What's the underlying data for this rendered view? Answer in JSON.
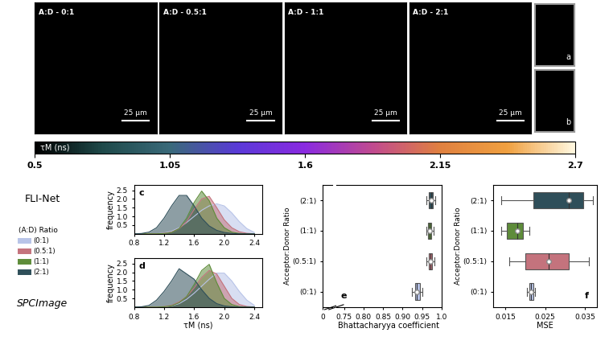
{
  "images": [
    {
      "label": "A:D - 0:1",
      "scale_bar": "25 μm"
    },
    {
      "label": "A:D - 0.5:1",
      "scale_bar": "25 μm"
    },
    {
      "label": "A:D - 1:1",
      "scale_bar": "25 μm"
    },
    {
      "label": "A:D - 2:1",
      "scale_bar": "25 μm"
    }
  ],
  "insets": [
    "a",
    "b"
  ],
  "colorbar": {
    "label": "τM (ns)",
    "range": [
      0.5,
      2.7
    ],
    "ticks": [
      0.5,
      1.05,
      1.6,
      2.15,
      2.7
    ]
  },
  "row_labels": [
    "FLI-Net",
    "SPCImage"
  ],
  "legend_title": "(A:D) Ratio",
  "chart_data": [
    {
      "type": "line",
      "annotation": "c",
      "ylabel": "frequency",
      "legend": "center left",
      "xlim": [
        0.8,
        2.5
      ],
      "ylim": [
        0,
        2.8
      ],
      "xticks": [
        0.8,
        1.2,
        1.6,
        2.0,
        2.4
      ],
      "yticks": [
        0.5,
        1.0,
        1.5,
        2.0,
        2.5
      ],
      "x": [
        0.8,
        0.9,
        1.0,
        1.1,
        1.2,
        1.3,
        1.4,
        1.5,
        1.6,
        1.7,
        1.8,
        1.9,
        2.0,
        2.1,
        2.2,
        2.3,
        2.4
      ],
      "series": [
        {
          "name": "(0:1)",
          "color": "#b8c4e8",
          "values": [
            0,
            0,
            0,
            0,
            0.05,
            0.15,
            0.35,
            0.65,
            1.0,
            1.35,
            1.6,
            1.72,
            1.6,
            1.2,
            0.7,
            0.3,
            0.08
          ]
        },
        {
          "name": "(0.5:1)",
          "color": "#c4737d",
          "values": [
            0,
            0,
            0,
            0,
            0.03,
            0.1,
            0.3,
            0.7,
            1.4,
            2.0,
            2.15,
            1.5,
            0.8,
            0.35,
            0.12,
            0.03,
            0
          ]
        },
        {
          "name": "(1:1)",
          "color": "#5e8c3a",
          "values": [
            0,
            0,
            0,
            0,
            0.02,
            0.08,
            0.3,
            0.9,
            1.8,
            2.45,
            1.9,
            0.9,
            0.35,
            0.1,
            0.02,
            0,
            0
          ]
        },
        {
          "name": "(2:1)",
          "color": "#2f4f5a",
          "values": [
            0,
            0.02,
            0.1,
            0.35,
            0.9,
            1.6,
            2.2,
            2.2,
            1.6,
            0.9,
            0.45,
            0.2,
            0.08,
            0.02,
            0,
            0,
            0
          ]
        }
      ]
    },
    {
      "type": "line",
      "annotation": "d",
      "ylabel": "frequency",
      "xlabel": "τM (ns)",
      "xlim": [
        0.8,
        2.5
      ],
      "ylim": [
        0,
        2.8
      ],
      "xticks": [
        0.8,
        1.2,
        1.6,
        2.0,
        2.4
      ],
      "yticks": [
        0.5,
        1.0,
        1.5,
        2.0,
        2.5
      ],
      "x": [
        0.8,
        0.9,
        1.0,
        1.1,
        1.2,
        1.3,
        1.4,
        1.5,
        1.6,
        1.7,
        1.8,
        1.9,
        2.0,
        2.1,
        2.2,
        2.3,
        2.4
      ],
      "series": [
        {
          "name": "(0:1)",
          "color": "#b8c4e8",
          "values": [
            0,
            0,
            0,
            0,
            0.02,
            0.08,
            0.2,
            0.45,
            0.8,
            1.2,
            1.6,
            1.95,
            1.95,
            1.5,
            0.9,
            0.4,
            0.1
          ]
        },
        {
          "name": "(0.5:1)",
          "color": "#c4737d",
          "values": [
            0,
            0,
            0,
            0,
            0.03,
            0.1,
            0.3,
            0.6,
            1.1,
            1.7,
            2.1,
            1.9,
            1.2,
            0.5,
            0.15,
            0.04,
            0
          ]
        },
        {
          "name": "(1:1)",
          "color": "#5e8c3a",
          "values": [
            0,
            0,
            0,
            0,
            0.02,
            0.08,
            0.25,
            0.6,
            1.3,
            2.1,
            2.45,
            1.4,
            0.5,
            0.15,
            0.03,
            0,
            0
          ]
        },
        {
          "name": "(2:1)",
          "color": "#2f4f5a",
          "values": [
            0,
            0.02,
            0.1,
            0.4,
            0.9,
            1.5,
            2.2,
            1.9,
            1.6,
            1.0,
            0.5,
            0.2,
            0.07,
            0.02,
            0,
            0,
            0
          ]
        }
      ]
    },
    {
      "type": "box",
      "annotation": "e",
      "orientation": "horizontal",
      "xlabel": "Bhattacharyya coefficient",
      "ylabel": "Acceptor:Donor Ratio",
      "categories": [
        "(0:1)",
        "(0.5:1)",
        "(1:1)",
        "(2:1)"
      ],
      "colors": [
        "#b8c4e8",
        "#c4737d",
        "#5e8c3a",
        "#2f4f5a"
      ],
      "xlim": [
        0,
        1.0
      ],
      "axis_break": [
        0.01,
        0.73
      ],
      "xticks": [
        0,
        0.75,
        {
          "value": 0.8,
          "label": "0.80"
        },
        0.85,
        {
          "value": 0.9,
          "label": "0.90"
        },
        0.95,
        1.0
      ],
      "boxes": [
        {
          "whislo": 0.925,
          "q1": 0.932,
          "med": 0.937,
          "q3": 0.945,
          "whishi": 0.95,
          "mean": 0.937
        },
        {
          "whislo": 0.962,
          "q1": 0.968,
          "med": 0.972,
          "q3": 0.976,
          "whishi": 0.982,
          "mean": 0.972
        },
        {
          "whislo": 0.962,
          "q1": 0.966,
          "med": 0.97,
          "q3": 0.974,
          "whishi": 0.98,
          "mean": 0.97
        },
        {
          "whislo": 0.962,
          "q1": 0.968,
          "med": 0.973,
          "q3": 0.978,
          "whishi": 0.984,
          "mean": 0.973
        }
      ]
    },
    {
      "type": "box",
      "annotation": "f",
      "orientation": "horizontal",
      "xlabel": "MSE",
      "ylabel": "Acceptor:Donor Ratio",
      "categories": [
        "(0:1)",
        "(0.5:1)",
        "(1:1)",
        "(2:1)"
      ],
      "colors": [
        "#b8c4e8",
        "#c4737d",
        "#5e8c3a",
        "#2f4f5a"
      ],
      "xlim": [
        0.012,
        0.038
      ],
      "xticks": [
        0.015,
        0.025,
        0.035
      ],
      "boxes": [
        {
          "whislo": 0.0205,
          "q1": 0.021,
          "med": 0.0215,
          "q3": 0.022,
          "whishi": 0.0225,
          "mean": 0.0215
        },
        {
          "whislo": 0.016,
          "q1": 0.02,
          "med": 0.026,
          "q3": 0.031,
          "whishi": 0.036,
          "mean": 0.026
        },
        {
          "whislo": 0.014,
          "q1": 0.0155,
          "med": 0.018,
          "q3": 0.0195,
          "whishi": 0.021,
          "mean": 0.018
        },
        {
          "whislo": 0.014,
          "q1": 0.022,
          "med": 0.031,
          "q3": 0.0345,
          "whishi": 0.037,
          "mean": 0.031
        }
      ]
    }
  ]
}
